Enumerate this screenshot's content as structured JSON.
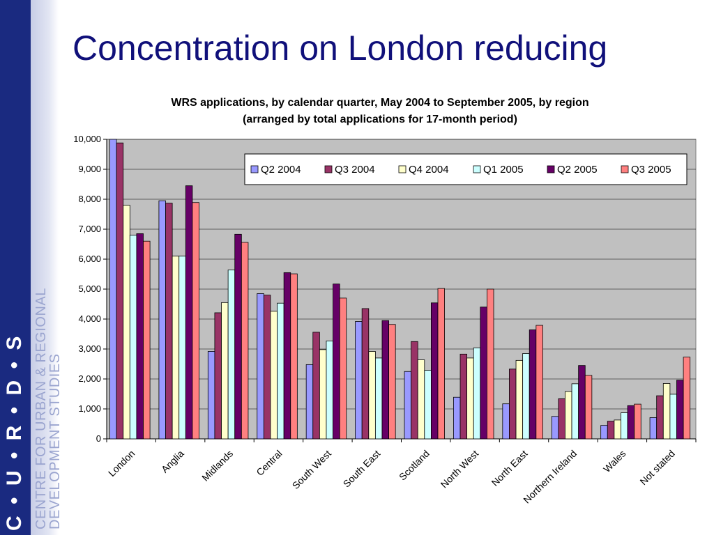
{
  "slide": {
    "title": "Concentration on London reducing",
    "logo_letters": "C • U • R • D • S",
    "org_line1": "CENTRE FOR URBAN & REGIONAL",
    "org_line2": "DEVELOPMENT STUDIES"
  },
  "chart_data": {
    "type": "bar",
    "title": "WRS applications, by calendar quarter, May 2004 to September 2005, by region",
    "subtitle": "(arranged by total applications for 17-month period)",
    "xlabel": "",
    "ylabel": "",
    "ylim": [
      0,
      10000
    ],
    "yticks": [
      "0",
      "1,000",
      "2,000",
      "3,000",
      "4,000",
      "5,000",
      "6,000",
      "7,000",
      "8,000",
      "9,000",
      "10,000"
    ],
    "grid": true,
    "legend_position": "top-right",
    "categories": [
      "London",
      "Anglia",
      "Midlands",
      "Central",
      "South West",
      "South East",
      "Scotland",
      "North West",
      "North East",
      "Northern Ireland",
      "Wales",
      "Not stated"
    ],
    "series": [
      {
        "name": "Q2 2004",
        "color": "#9999ff",
        "values": [
          10000,
          7950,
          2920,
          4850,
          2480,
          3920,
          2250,
          1390,
          1170,
          750,
          450,
          710
        ]
      },
      {
        "name": "Q3 2004",
        "color": "#993366",
        "values": [
          9880,
          7870,
          4210,
          4800,
          3560,
          4350,
          3250,
          2830,
          2330,
          1340,
          590,
          1440
        ]
      },
      {
        "name": "Q4 2004",
        "color": "#ffffcc",
        "values": [
          7800,
          6100,
          4550,
          4260,
          2980,
          2920,
          2640,
          2700,
          2620,
          1580,
          630,
          1850
        ]
      },
      {
        "name": "Q1 2005",
        "color": "#ccffff",
        "values": [
          6800,
          6100,
          5640,
          4530,
          3270,
          2700,
          2290,
          3040,
          2850,
          1840,
          870,
          1490
        ]
      },
      {
        "name": "Q2 2005",
        "color": "#660066",
        "values": [
          6850,
          8450,
          6830,
          5550,
          5170,
          3950,
          4540,
          4400,
          3640,
          2450,
          1110,
          1960
        ]
      },
      {
        "name": "Q3 2005",
        "color": "#ff8080",
        "values": [
          6600,
          7890,
          6560,
          5510,
          4700,
          3820,
          5020,
          5000,
          3790,
          2120,
          1160,
          2730
        ]
      }
    ]
  }
}
